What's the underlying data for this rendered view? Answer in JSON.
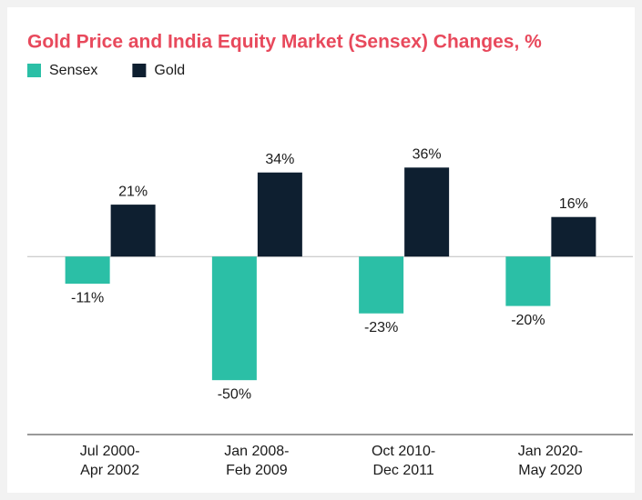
{
  "chart_data": {
    "type": "bar",
    "title": "Gold Price and India Equity Market (Sensex) Changes, %",
    "categories": [
      [
        "Jul 2000-",
        "Apr 2002"
      ],
      [
        "Jan 2008-",
        "Feb 2009"
      ],
      [
        "Oct 2010-",
        "Dec 2011"
      ],
      [
        "Jan 2020-",
        "May 2020"
      ]
    ],
    "series": [
      {
        "name": "Sensex",
        "color": "#2bbfa6",
        "values": [
          -11,
          -50,
          -23,
          -20
        ],
        "value_labels": [
          "-11%",
          "-50%",
          "-23%",
          "-20%"
        ]
      },
      {
        "name": "Gold",
        "color": "#0e1f30",
        "values": [
          21,
          34,
          36,
          16
        ],
        "value_labels": [
          "21%",
          "34%",
          "36%",
          "16%"
        ]
      }
    ],
    "ylim": [
      -72,
      67
    ],
    "legend": "top-left"
  }
}
